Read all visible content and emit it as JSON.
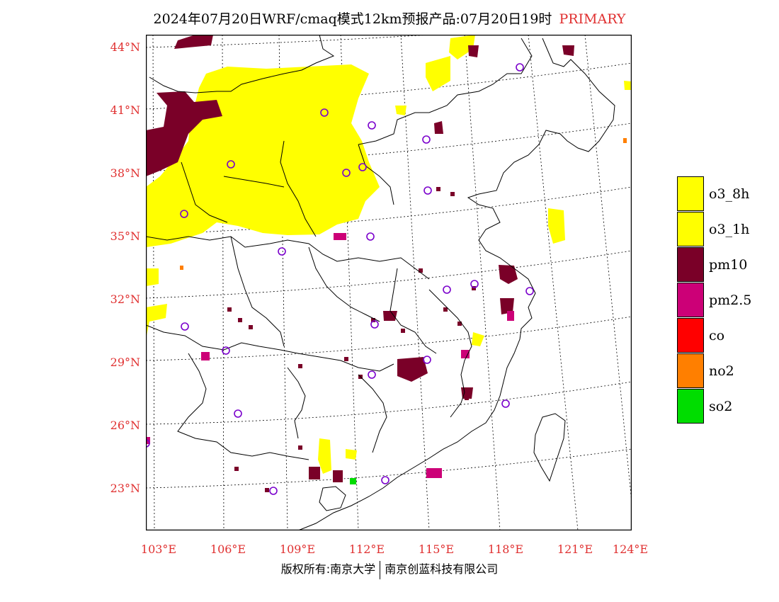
{
  "title": {
    "main": "2024年07月20日WRF/cmaq模式12km预报产品:07月20日19时",
    "tag": "PRIMARY"
  },
  "y_axis_labels": [
    "44°N",
    "41°N",
    "38°N",
    "35°N",
    "32°N",
    "29°N",
    "26°N",
    "23°N"
  ],
  "x_axis_labels": [
    "103°E",
    "106°E",
    "109°E",
    "112°E",
    "115°E",
    "118°E",
    "121°E",
    "124°E"
  ],
  "legend": [
    {
      "label": "o3_8h",
      "color": "#ffff00"
    },
    {
      "label": "o3_1h",
      "color": "#ffff00"
    },
    {
      "label": "pm10",
      "color": "#7a0028"
    },
    {
      "label": "pm2.5",
      "color": "#cc0077"
    },
    {
      "label": "co",
      "color": "#ff0000"
    },
    {
      "label": "no2",
      "color": "#ff7f00"
    },
    {
      "label": "so2",
      "color": "#00dd00"
    }
  ],
  "footer": {
    "left": "版权所有:南京大学",
    "right": "南京创蓝科技有限公司"
  },
  "colors": {
    "accent": "#e03030",
    "o3": "#ffff00",
    "pm10": "#7a0028",
    "pm25": "#cc0077",
    "station": "#7a00cc"
  }
}
